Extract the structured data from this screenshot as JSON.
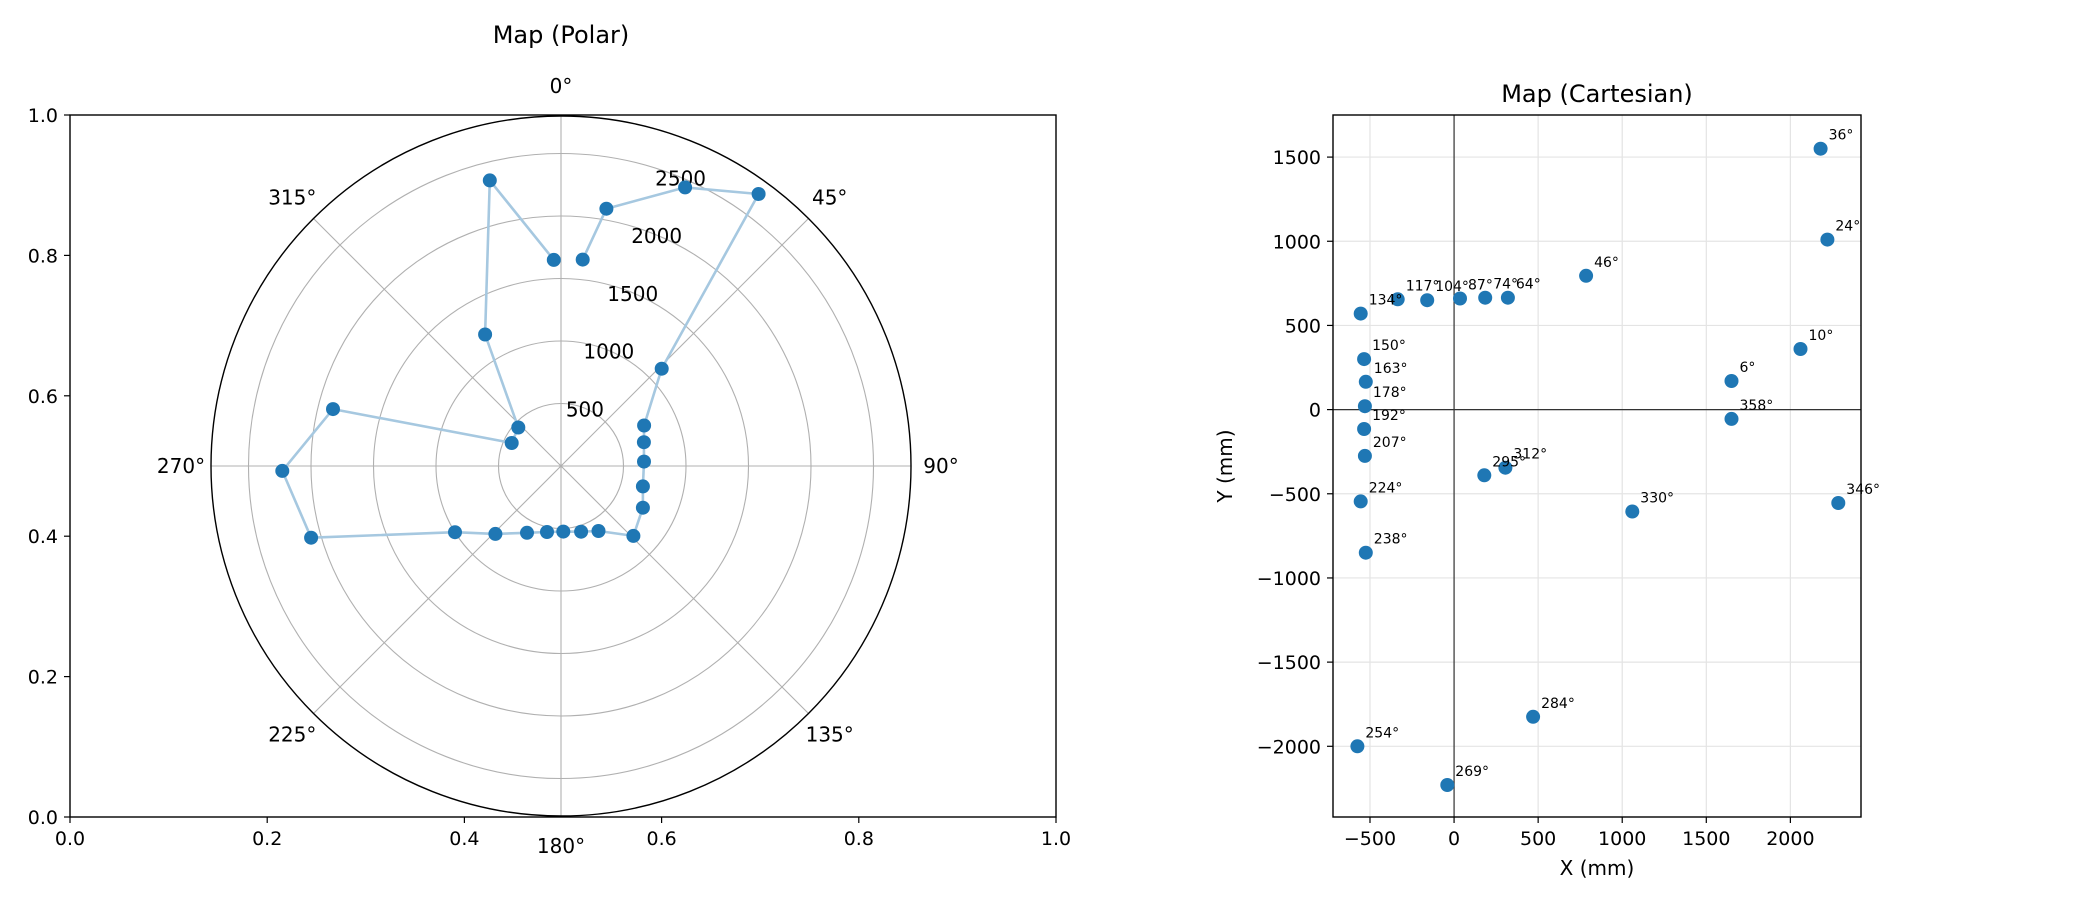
{
  "chart_data": [
    {
      "type": "scatter",
      "subtype": "polar",
      "title": "Map (Polar)",
      "angle_zero": "top",
      "angle_direction": "clockwise",
      "angle_ticks": [
        0,
        45,
        90,
        135,
        180,
        225,
        270,
        315
      ],
      "angle_tick_labels": [
        "0°",
        "45°",
        "90°",
        "135°",
        "180°",
        "225°",
        "270°",
        "315°"
      ],
      "radial_ticks": [
        500,
        1000,
        1500,
        2000,
        2500
      ],
      "radial_tick_labels": [
        "500",
        "1000",
        "1500",
        "2000",
        "2500"
      ],
      "rlim": [
        0,
        2800
      ],
      "frame_xlim": [
        0,
        1
      ],
      "frame_ylim": [
        0,
        1
      ],
      "frame_x_ticks": [
        "0.0",
        "0.2",
        "0.4",
        "0.6",
        "0.8",
        "1.0"
      ],
      "frame_y_ticks": [
        "0.0",
        "0.2",
        "0.4",
        "0.6",
        "0.8",
        "1.0"
      ],
      "grid": true,
      "colors": {
        "points": "#1f77b4",
        "line": "#a6c8e0",
        "grid": "#b0b0b0"
      },
      "connected": true,
      "points": [
        {
          "angle": 6,
          "r": 1660
        },
        {
          "angle": 10,
          "r": 2090
        },
        {
          "angle": 24,
          "r": 2440
        },
        {
          "angle": 36,
          "r": 2690
        },
        {
          "angle": 46,
          "r": 1120
        },
        {
          "angle": 64,
          "r": 740
        },
        {
          "angle": 74,
          "r": 690
        },
        {
          "angle": 87,
          "r": 665
        },
        {
          "angle": 104,
          "r": 675
        },
        {
          "angle": 117,
          "r": 735
        },
        {
          "angle": 134,
          "r": 805
        },
        {
          "angle": 150,
          "r": 600
        },
        {
          "angle": 163,
          "r": 550
        },
        {
          "angle": 178,
          "r": 525
        },
        {
          "angle": 192,
          "r": 540
        },
        {
          "angle": 207,
          "r": 600
        },
        {
          "angle": 224,
          "r": 755
        },
        {
          "angle": 238,
          "r": 1000
        },
        {
          "angle": 254,
          "r": 2080
        },
        {
          "angle": 269,
          "r": 2230
        },
        {
          "angle": 284,
          "r": 1880
        },
        {
          "angle": 295,
          "r": 435
        },
        {
          "angle": 312,
          "r": 460
        },
        {
          "angle": 330,
          "r": 1215
        },
        {
          "angle": 346,
          "r": 2355
        },
        {
          "angle": 358,
          "r": 1650
        }
      ]
    },
    {
      "type": "scatter",
      "title": "Map (Cartesian)",
      "xlabel": "X (mm)",
      "ylabel": "Y (mm)",
      "xlim": [
        -720,
        2420
      ],
      "ylim": [
        -2420,
        1750
      ],
      "x_ticks": [
        -500,
        0,
        500,
        1000,
        1500,
        2000
      ],
      "x_tick_labels": [
        "−500",
        "0",
        "500",
        "1000",
        "1500",
        "2000"
      ],
      "y_ticks": [
        -2000,
        -1500,
        -1000,
        -500,
        0,
        500,
        1000,
        1500
      ],
      "y_tick_labels": [
        "−2000",
        "−1500",
        "−1000",
        "−500",
        "0",
        "500",
        "1000",
        "1500"
      ],
      "grid": true,
      "axis_lines_at_zero": true,
      "colors": {
        "points": "#1f77b4",
        "grid": "#e4e4e4",
        "zero_lines": "#333333"
      },
      "points": [
        {
          "x": 1650,
          "y": 170,
          "label": "6°"
        },
        {
          "x": 2060,
          "y": 360,
          "label": "10°"
        },
        {
          "x": 2220,
          "y": 1010,
          "label": "24°"
        },
        {
          "x": 2180,
          "y": 1550,
          "label": "36°"
        },
        {
          "x": 785,
          "y": 795,
          "label": "46°"
        },
        {
          "x": 320,
          "y": 665,
          "label": "64°"
        },
        {
          "x": 185,
          "y": 665,
          "label": "74°"
        },
        {
          "x": 35,
          "y": 660,
          "label": "87°"
        },
        {
          "x": -160,
          "y": 650,
          "label": "104°"
        },
        {
          "x": -335,
          "y": 655,
          "label": "117°"
        },
        {
          "x": -555,
          "y": 570,
          "label": "134°"
        },
        {
          "x": -535,
          "y": 300,
          "label": "150°"
        },
        {
          "x": -525,
          "y": 165,
          "label": "163°"
        },
        {
          "x": -530,
          "y": 20,
          "label": "178°"
        },
        {
          "x": -535,
          "y": -115,
          "label": "192°"
        },
        {
          "x": -530,
          "y": -275,
          "label": "207°"
        },
        {
          "x": -555,
          "y": -545,
          "label": "224°"
        },
        {
          "x": -525,
          "y": -850,
          "label": "238°"
        },
        {
          "x": -575,
          "y": -2000,
          "label": "254°"
        },
        {
          "x": -40,
          "y": -2230,
          "label": "269°"
        },
        {
          "x": 470,
          "y": -1825,
          "label": "284°"
        },
        {
          "x": 180,
          "y": -390,
          "label": "295°"
        },
        {
          "x": 305,
          "y": -345,
          "label": "312°"
        },
        {
          "x": 1060,
          "y": -605,
          "label": "330°"
        },
        {
          "x": 2285,
          "y": -555,
          "label": "346°"
        },
        {
          "x": 1650,
          "y": -55,
          "label": "358°"
        }
      ]
    }
  ]
}
